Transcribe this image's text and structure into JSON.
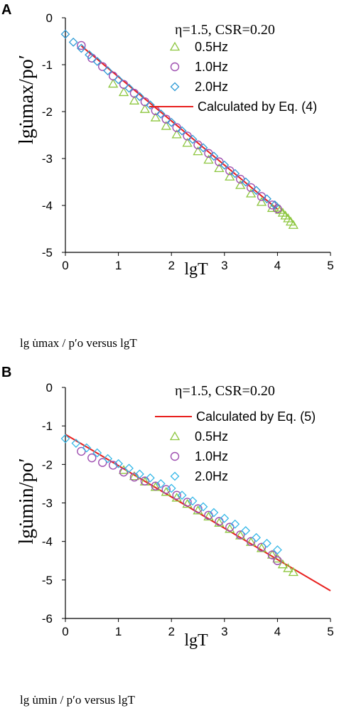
{
  "chart_data": [
    {
      "panel": "A",
      "type": "scatter",
      "annotation": "η=1.5, CSR=0.20",
      "xlabel": "lgT",
      "ylabel": "lgu̇max/po′",
      "xlim": [
        0,
        5
      ],
      "ylim": [
        -5,
        0
      ],
      "xticks": [
        "0",
        "1",
        "2",
        "3",
        "4",
        "5"
      ],
      "yticks": [
        "0",
        "-1",
        "-2",
        "-3",
        "-4",
        "-5"
      ],
      "caption": "lg u̇max / p′o  versus  lgT",
      "series": [
        {
          "name": "0.5Hz",
          "marker": "triangle",
          "color": "#8DC63F",
          "x": [
            0.9,
            1.1,
            1.3,
            1.5,
            1.7,
            1.9,
            2.1,
            2.3,
            2.5,
            2.7,
            2.9,
            3.1,
            3.3,
            3.5,
            3.7,
            3.9,
            4.0,
            4.05,
            4.1,
            4.15,
            4.2,
            4.25,
            4.3
          ],
          "y": [
            -1.41,
            -1.59,
            -1.77,
            -1.95,
            -2.13,
            -2.31,
            -2.49,
            -2.67,
            -2.85,
            -3.03,
            -3.21,
            -3.39,
            -3.57,
            -3.75,
            -3.93,
            -4.06,
            -4.05,
            -4.1,
            -4.16,
            -4.22,
            -4.28,
            -4.35,
            -4.42
          ]
        },
        {
          "name": "1.0Hz",
          "marker": "circle",
          "color": "#9E4FB0",
          "x": [
            0.3,
            0.5,
            0.7,
            0.9,
            1.1,
            1.3,
            1.5,
            1.7,
            1.9,
            2.1,
            2.3,
            2.5,
            2.7,
            2.9,
            3.1,
            3.3,
            3.5,
            3.7,
            3.9,
            4.0
          ],
          "y": [
            -0.59,
            -0.86,
            -1.04,
            -1.24,
            -1.42,
            -1.61,
            -1.79,
            -1.98,
            -2.16,
            -2.34,
            -2.52,
            -2.71,
            -2.89,
            -3.07,
            -3.26,
            -3.44,
            -3.62,
            -3.81,
            -3.99,
            -4.07
          ]
        },
        {
          "name": "2.0Hz",
          "marker": "diamond",
          "color": "#2E9BD6",
          "x": [
            0.0,
            0.15,
            0.3,
            0.45,
            0.6,
            0.8,
            1.0,
            1.2,
            1.4,
            1.6,
            1.8,
            2.0,
            2.2,
            2.4,
            2.6,
            2.8,
            3.0,
            3.2,
            3.4,
            3.6,
            3.8,
            3.95
          ],
          "y": [
            -0.35,
            -0.52,
            -0.65,
            -0.79,
            -0.93,
            -1.13,
            -1.32,
            -1.5,
            -1.68,
            -1.86,
            -2.05,
            -2.23,
            -2.41,
            -2.59,
            -2.77,
            -2.95,
            -3.14,
            -3.32,
            -3.5,
            -3.68,
            -3.86,
            -3.99
          ]
        },
        {
          "name": "Calculated by Eq. (4)",
          "marker": "line",
          "color": "#E8201E",
          "x": [
            0.3,
            4.0
          ],
          "y": [
            -0.6,
            -4.08
          ]
        }
      ]
    },
    {
      "panel": "B",
      "type": "scatter",
      "annotation": "η=1.5, CSR=0.20",
      "xlabel": "lgT",
      "ylabel": "lgu̇min/po′",
      "xlim": [
        0,
        5
      ],
      "ylim": [
        -6,
        0
      ],
      "xticks": [
        "0",
        "1",
        "2",
        "3",
        "4",
        "5"
      ],
      "yticks": [
        "0",
        "-1",
        "-2",
        "-3",
        "-4",
        "-5",
        "-6"
      ],
      "caption": "lg u̇min / p′o  versus  lgT",
      "series": [
        {
          "name": "Calculated by Eq. (5)",
          "marker": "line",
          "color": "#E8201E",
          "x": [
            0.0,
            5.0
          ],
          "y": [
            -1.22,
            -5.28
          ]
        },
        {
          "name": "0.5Hz",
          "marker": "triangle",
          "color": "#8DC63F",
          "x": [
            1.1,
            1.3,
            1.5,
            1.7,
            1.9,
            2.1,
            2.3,
            2.5,
            2.7,
            2.9,
            3.1,
            3.3,
            3.5,
            3.7,
            3.9,
            4.0,
            4.1,
            4.2,
            4.3
          ],
          "y": [
            -2.15,
            -2.31,
            -2.45,
            -2.59,
            -2.72,
            -2.87,
            -3.03,
            -3.2,
            -3.36,
            -3.52,
            -3.68,
            -3.85,
            -4.02,
            -4.18,
            -4.35,
            -4.45,
            -4.6,
            -4.7,
            -4.8
          ]
        },
        {
          "name": "1.0Hz",
          "marker": "circle",
          "color": "#9E4FB0",
          "x": [
            0.3,
            0.5,
            0.7,
            0.9,
            1.1,
            1.3,
            1.5,
            1.7,
            1.9,
            2.1,
            2.3,
            2.5,
            2.7,
            2.9,
            3.1,
            3.3,
            3.5,
            3.7,
            3.9,
            4.0
          ],
          "y": [
            -1.66,
            -1.83,
            -1.95,
            -2.02,
            -2.2,
            -2.33,
            -2.43,
            -2.56,
            -2.65,
            -2.8,
            -2.98,
            -3.15,
            -3.32,
            -3.48,
            -3.63,
            -3.83,
            -4.0,
            -4.15,
            -4.35,
            -4.5
          ]
        },
        {
          "name": "2.0Hz",
          "marker": "diamond",
          "color": "#35B8E8",
          "x": [
            0.0,
            0.2,
            0.4,
            0.6,
            0.8,
            1.0,
            1.2,
            1.4,
            1.6,
            1.8,
            2.0,
            2.2,
            2.4,
            2.6,
            2.8,
            3.0,
            3.2,
            3.4,
            3.6,
            3.8,
            4.0
          ],
          "y": [
            -1.33,
            -1.45,
            -1.57,
            -1.7,
            -1.85,
            -1.98,
            -2.1,
            -2.25,
            -2.35,
            -2.5,
            -2.62,
            -2.8,
            -2.95,
            -3.1,
            -3.25,
            -3.4,
            -3.55,
            -3.72,
            -3.9,
            -4.05,
            -4.22
          ]
        }
      ]
    }
  ]
}
